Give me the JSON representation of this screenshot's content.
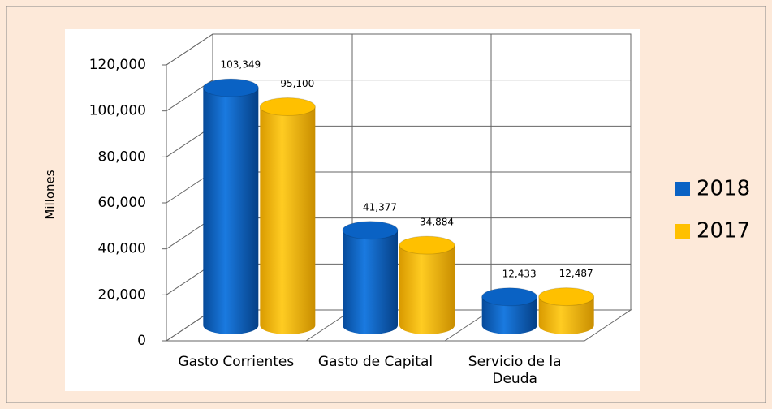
{
  "chart_data": {
    "type": "bar3d",
    "y_label": "Millones",
    "categories": [
      "Gasto Corrientes",
      "Gasto de Capital",
      "Servicio de la Deuda"
    ],
    "series": [
      {
        "name": "2018",
        "color": "#0a62c4",
        "values": [
          103349,
          41377,
          12433
        ],
        "value_labels": [
          "103,349",
          "41,377",
          "12,433"
        ]
      },
      {
        "name": "2017",
        "color": "#ffc000",
        "values": [
          95100,
          34884,
          12487
        ],
        "value_labels": [
          "95,100",
          "34,884",
          "12,487"
        ]
      }
    ],
    "ylim": [
      0,
      120000
    ],
    "yticks": [
      0,
      {
        "value": 20000,
        "label": "20,000"
      },
      {
        "value": 40000,
        "label": "40,000"
      },
      {
        "value": 60000,
        "label": "60,000"
      },
      {
        "value": 80000,
        "label": "80,000"
      },
      {
        "value": 100000,
        "label": "100,000"
      },
      {
        "value": 120000,
        "label": "120,000"
      }
    ],
    "grid": true,
    "legend": "right"
  }
}
